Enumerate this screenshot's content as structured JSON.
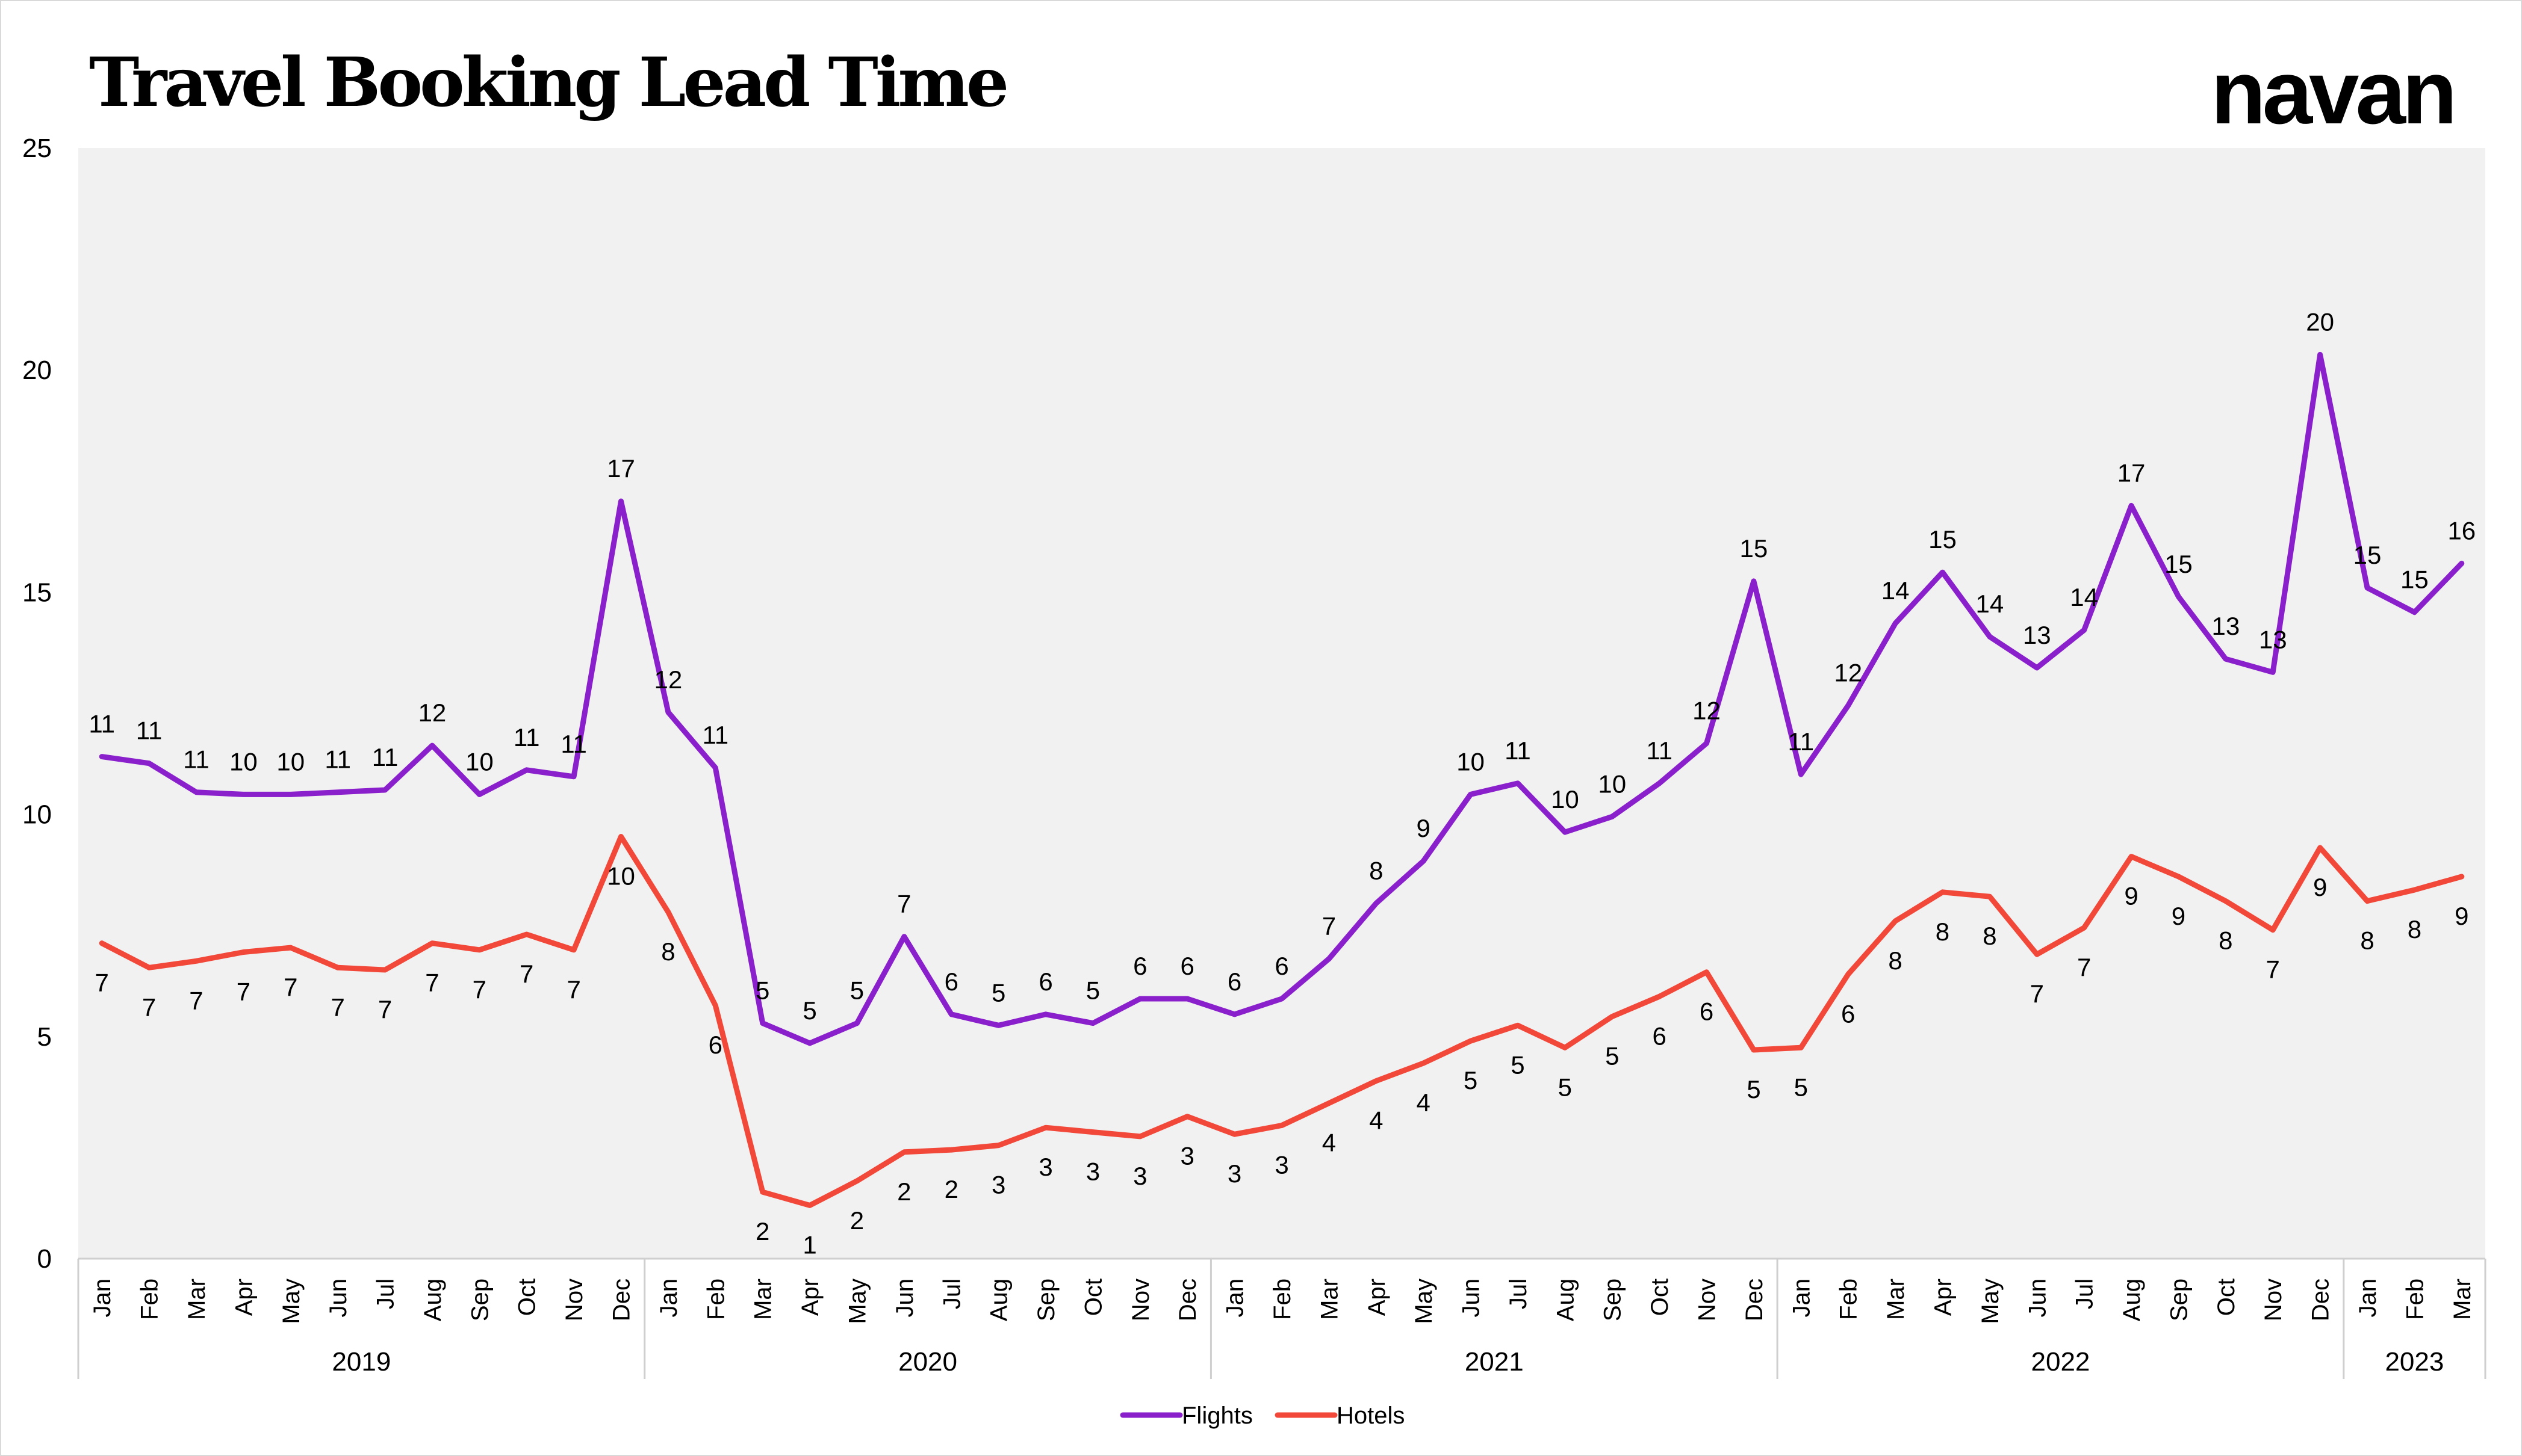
{
  "title": "Travel Booking Lead Time",
  "logo_text": "navan",
  "colors": {
    "flights": "#8a1fcc",
    "hotels": "#f2483a",
    "plot_bg": "#f1f1f1"
  },
  "chart_data": {
    "type": "line",
    "title": "Travel Booking Lead Time",
    "ylim": [
      0,
      25
    ],
    "yticks": [
      0,
      5,
      10,
      15,
      20,
      25
    ],
    "grid": false,
    "legend_position": "bottom",
    "years": [
      {
        "label": "2019",
        "months": 12
      },
      {
        "label": "2020",
        "months": 12
      },
      {
        "label": "2021",
        "months": 12
      },
      {
        "label": "2022",
        "months": 12
      },
      {
        "label": "2023",
        "months": 3
      }
    ],
    "categories": [
      "Jan",
      "Feb",
      "Mar",
      "Apr",
      "May",
      "Jun",
      "Jul",
      "Aug",
      "Sep",
      "Oct",
      "Nov",
      "Dec",
      "Jan",
      "Feb",
      "Mar",
      "Apr",
      "May",
      "Jun",
      "Jul",
      "Aug",
      "Sep",
      "Oct",
      "Nov",
      "Dec",
      "Jan",
      "Feb",
      "Mar",
      "Apr",
      "May",
      "Jun",
      "Jul",
      "Aug",
      "Sep",
      "Oct",
      "Nov",
      "Dec",
      "Jan",
      "Feb",
      "Mar",
      "Apr",
      "May",
      "Jun",
      "Jul",
      "Aug",
      "Sep",
      "Oct",
      "Nov",
      "Dec",
      "Jan",
      "Feb",
      "Mar"
    ],
    "series": [
      {
        "name": "Flights",
        "values": [
          11.3,
          11.15,
          10.5,
          10.45,
          10.45,
          10.5,
          10.55,
          11.55,
          10.45,
          11.0,
          10.85,
          17.05,
          12.3,
          11.05,
          5.3,
          4.85,
          5.3,
          7.25,
          5.5,
          5.25,
          5.5,
          5.3,
          5.85,
          5.85,
          5.5,
          5.85,
          6.75,
          8.0,
          8.95,
          10.45,
          10.7,
          9.6,
          9.95,
          10.7,
          11.6,
          15.25,
          10.9,
          12.45,
          14.3,
          15.45,
          14.0,
          13.3,
          14.15,
          16.95,
          14.9,
          13.5,
          13.2,
          20.35,
          15.1,
          14.55,
          15.65
        ],
        "labels": [
          "11",
          "11",
          "11",
          "10",
          "10",
          "11",
          "11",
          "12",
          "10",
          "11",
          "11",
          "17",
          "12",
          "11",
          "5",
          "5",
          "5",
          "7",
          "6",
          "5",
          "6",
          "5",
          "6",
          "6",
          "6",
          "6",
          "7",
          "8",
          "9",
          "10",
          "11",
          "10",
          "10",
          "11",
          "12",
          "15",
          "11",
          "12",
          "14",
          "15",
          "14",
          "13",
          "14",
          "17",
          "15",
          "13",
          "13",
          "20",
          "15",
          "15",
          "16"
        ]
      },
      {
        "name": "Hotels",
        "values": [
          7.1,
          6.55,
          6.7,
          6.9,
          7.0,
          6.55,
          6.5,
          7.1,
          6.95,
          7.3,
          6.95,
          9.5,
          7.8,
          5.7,
          1.5,
          1.2,
          1.75,
          2.4,
          2.45,
          2.55,
          2.95,
          2.85,
          2.75,
          3.2,
          2.8,
          3.0,
          3.5,
          4.0,
          4.4,
          4.9,
          5.25,
          4.75,
          5.45,
          5.9,
          6.45,
          4.7,
          4.75,
          6.4,
          7.6,
          8.25,
          8.15,
          6.85,
          7.45,
          9.05,
          8.6,
          8.05,
          7.4,
          9.25,
          8.05,
          8.3,
          8.6
        ],
        "labels": [
          "7",
          "7",
          "7",
          "7",
          "7",
          "7",
          "7",
          "7",
          "7",
          "7",
          "7",
          "10",
          "8",
          "6",
          "2",
          "1",
          "2",
          "2",
          "2",
          "3",
          "3",
          "3",
          "3",
          "3",
          "3",
          "3",
          "4",
          "4",
          "4",
          "5",
          "5",
          "5",
          "5",
          "6",
          "6",
          "5",
          "5",
          "6",
          "8",
          "8",
          "8",
          "7",
          "7",
          "9",
          "9",
          "8",
          "7",
          "9",
          "8",
          "8",
          "9"
        ]
      }
    ]
  }
}
